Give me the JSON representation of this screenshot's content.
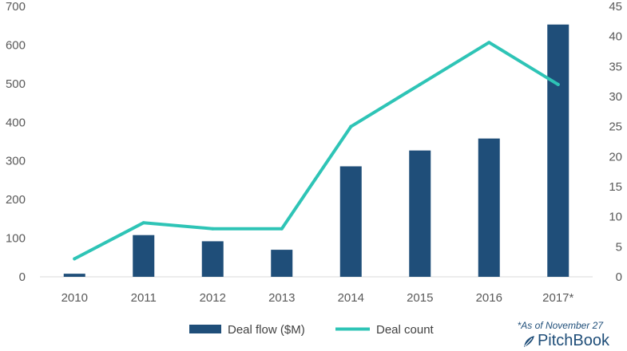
{
  "chart_data": {
    "type": "bar",
    "categories": [
      "2010",
      "2011",
      "2012",
      "2013",
      "2014",
      "2015",
      "2016",
      "2017*"
    ],
    "series": [
      {
        "name": "Deal flow ($M)",
        "type": "bar",
        "axis": "left",
        "color": "#1f4e79",
        "values": [
          8,
          108,
          92,
          70,
          286,
          327,
          358,
          653
        ]
      },
      {
        "name": "Deal count",
        "type": "line",
        "axis": "right",
        "color": "#2ec4b6",
        "values": [
          3,
          9,
          8,
          8,
          25,
          32,
          39,
          32
        ]
      }
    ],
    "y_left": {
      "min": 0,
      "max": 700,
      "ticks": [
        "0",
        "100",
        "200",
        "300",
        "400",
        "500",
        "600",
        "700"
      ]
    },
    "y_right": {
      "min": 0,
      "max": 45,
      "ticks": [
        "0",
        "5",
        "10",
        "15",
        "20",
        "25",
        "30",
        "35",
        "40",
        "45"
      ]
    },
    "grid": false,
    "legend_position": "bottom"
  },
  "footnote": "*As of November 27",
  "brand": {
    "name": "PitchBook",
    "icon": "pitchbook-leaf-icon"
  }
}
